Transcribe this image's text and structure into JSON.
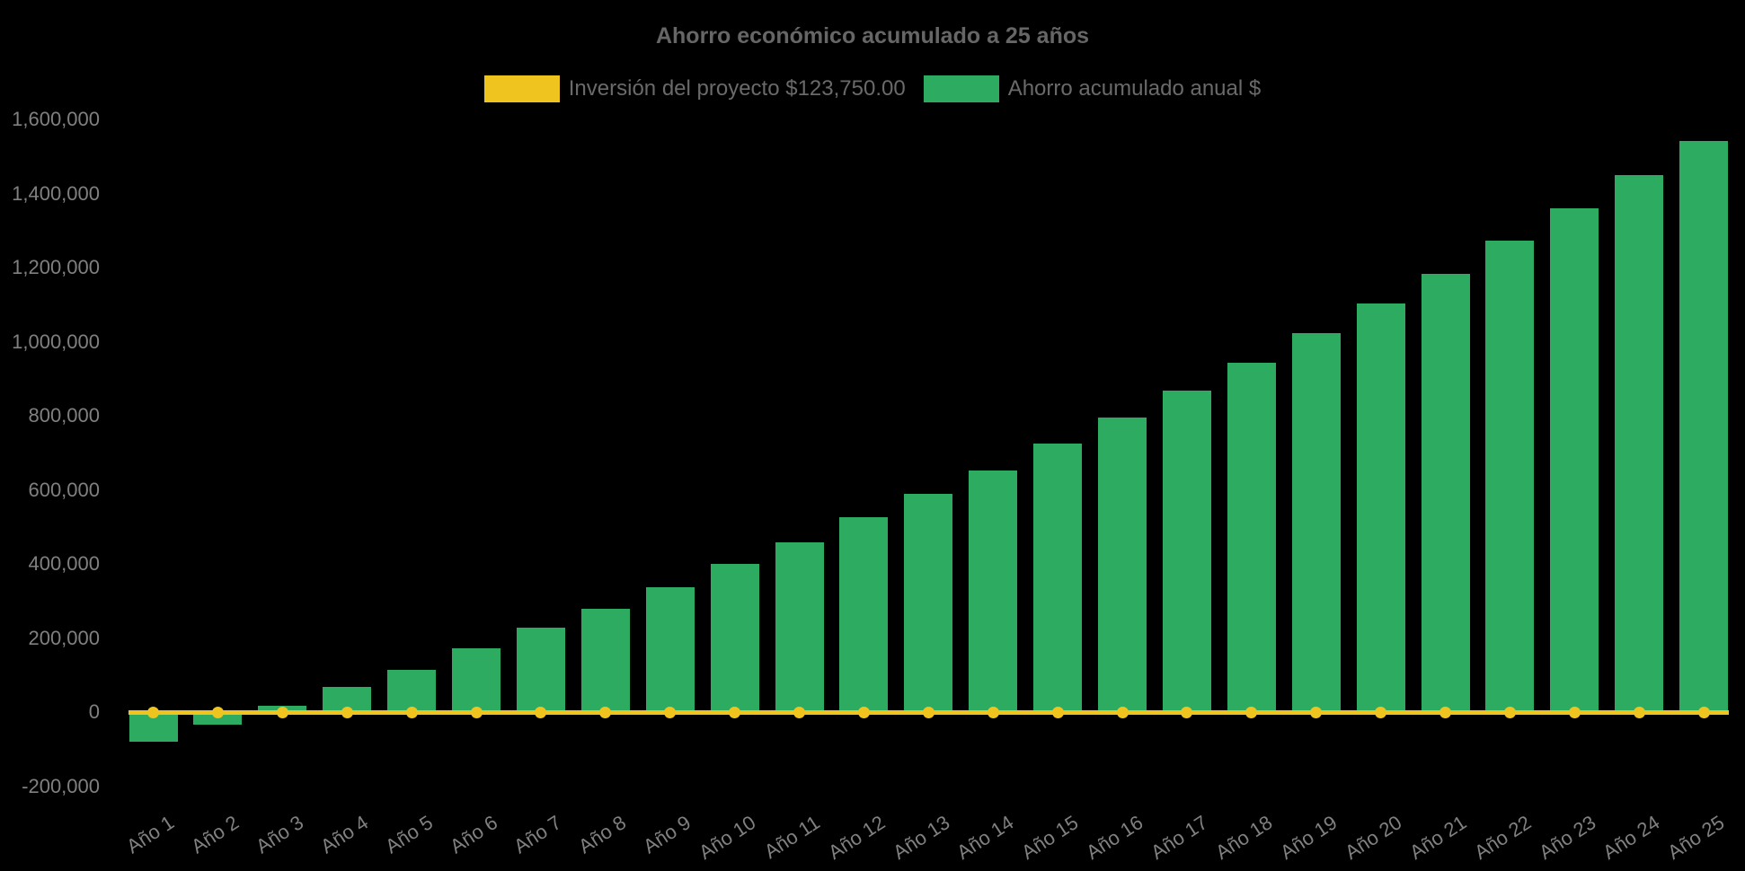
{
  "title": "Ahorro económico acumulado a 25 años",
  "colors": {
    "background": "#000000",
    "bar_green": "#2DAC61",
    "line_yellow": "#F0C41E",
    "title_text": "#666666",
    "legend_text": "#6a6a6a",
    "axis_text": "#808080"
  },
  "legend": {
    "items": [
      {
        "label": "Inversión del proyecto $123,750.00",
        "color": "#F0C41E"
      },
      {
        "label": "Ahorro acumulado anual $",
        "color": "#2DAC61"
      }
    ]
  },
  "chart_data": {
    "type": "bar",
    "title": "Ahorro económico acumulado a 25 años",
    "categories": [
      "Año 1",
      "Año 2",
      "Año 3",
      "Año 4",
      "Año 5",
      "Año 6",
      "Año 7",
      "Año 8",
      "Año 9",
      "Año 10",
      "Año 11",
      "Año 12",
      "Año 13",
      "Año 14",
      "Año 15",
      "Año 16",
      "Año 17",
      "Año 18",
      "Año 19",
      "Año 20",
      "Año 21",
      "Año 22",
      "Año 23",
      "Año 24",
      "Año 25"
    ],
    "series": [
      {
        "name": "Inversión del proyecto $123,750.00",
        "type": "line",
        "color": "#F0C41E",
        "marker": "circle",
        "investment_amount": 123750.0,
        "values": [
          0,
          0,
          0,
          0,
          0,
          0,
          0,
          0,
          0,
          0,
          0,
          0,
          0,
          0,
          0,
          0,
          0,
          0,
          0,
          0,
          0,
          0,
          0,
          0,
          0
        ]
      },
      {
        "name": "Ahorro acumulado anual $",
        "type": "bar",
        "color": "#2DAC61",
        "values": [
          -80000,
          -33000,
          17000,
          67000,
          115000,
          171000,
          227000,
          280000,
          338000,
          399000,
          459000,
          525000,
          588000,
          653000,
          726000,
          796000,
          869000,
          944000,
          1022000,
          1104000,
          1184000,
          1272000,
          1359000,
          1449000,
          1541000
        ]
      }
    ],
    "xlabel": "",
    "ylabel": "",
    "ylim": [
      -200000,
      1600000
    ],
    "ytick_step": 200000,
    "yticks": [
      {
        "value": 1600000,
        "label": "1,600,000"
      },
      {
        "value": 1400000,
        "label": "1,400,000"
      },
      {
        "value": 1200000,
        "label": "1,200,000"
      },
      {
        "value": 1000000,
        "label": "1,000,000"
      },
      {
        "value": 800000,
        "label": "800,000"
      },
      {
        "value": 600000,
        "label": "600,000"
      },
      {
        "value": 400000,
        "label": "400,000"
      },
      {
        "value": 200000,
        "label": "200,000"
      },
      {
        "value": 0,
        "label": "0"
      },
      {
        "value": -200000,
        "label": "-200,000"
      }
    ],
    "grid": false,
    "legend_position": "top"
  }
}
